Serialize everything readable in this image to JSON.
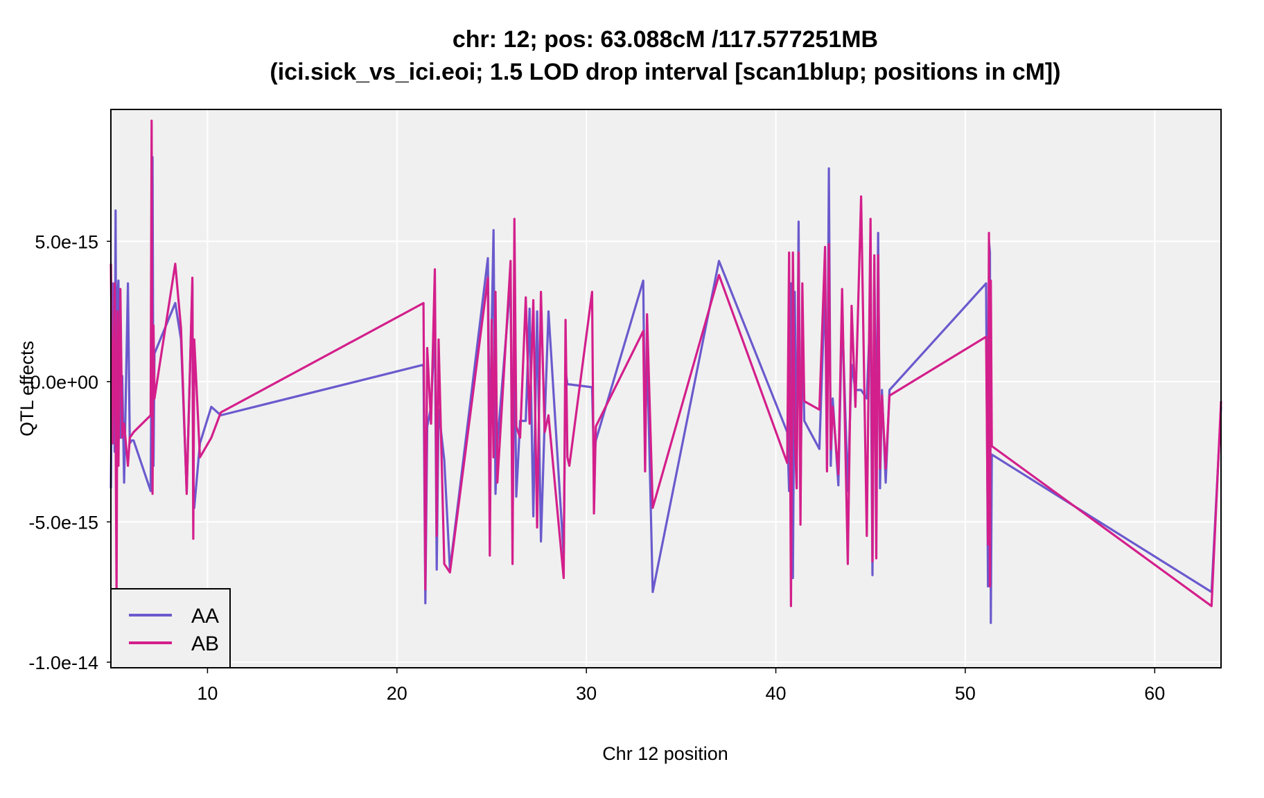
{
  "chart_data": {
    "type": "line",
    "title_line1": "chr: 12; pos: 63.088cM /117.577251MB",
    "title_line2": "(ici.sick_vs_ici.eoi; 1.5 LOD drop interval [scan1blup; positions in cM])",
    "xlabel": "Chr 12 position",
    "ylabel": "QTL effects",
    "xlim": [
      4.9,
      63.5
    ],
    "ylim": [
      -1.02e-14,
      9.7e-15
    ],
    "xticks": [
      10,
      20,
      30,
      40,
      50,
      60
    ],
    "xtick_labels": [
      "10",
      "20",
      "30",
      "40",
      "50",
      "60"
    ],
    "yticks": [
      5e-15,
      0,
      -5e-15,
      -1e-14
    ],
    "ytick_labels": [
      "5.0e-15",
      "0.0e+00",
      "-5.0e-15",
      "-1.0e-14"
    ],
    "grid": true,
    "legend_position": "bottom-left",
    "series": [
      {
        "name": "AA",
        "color": "#6a5acd",
        "x": [
          4.9,
          5.0,
          5.1,
          5.15,
          5.2,
          5.25,
          5.3,
          5.4,
          5.5,
          5.6,
          5.8,
          5.9,
          6.0,
          6.1,
          7.0,
          7.05,
          7.1,
          7.15,
          7.2,
          8.3,
          8.6,
          8.9,
          9.2,
          9.25,
          9.3,
          9.6,
          10.2,
          10.7,
          21.4,
          21.5,
          21.6,
          21.8,
          22.0,
          22.1,
          22.2,
          22.5,
          22.8,
          24.8,
          24.9,
          25.0,
          25.1,
          25.2,
          25.3,
          26.0,
          26.1,
          26.2,
          26.3,
          26.5,
          26.8,
          27.0,
          27.2,
          27.4,
          27.6,
          27.8,
          28.0,
          28.8,
          28.9,
          29.0,
          29.1,
          30.3,
          30.4,
          30.5,
          33.0,
          33.1,
          33.2,
          33.5,
          37.0,
          40.6,
          40.7,
          40.8,
          40.9,
          41.0,
          41.1,
          41.2,
          41.3,
          41.4,
          41.5,
          42.3,
          42.6,
          42.7,
          42.8,
          42.9,
          43.0,
          43.3,
          43.5,
          43.8,
          44.0,
          44.2,
          44.5,
          44.8,
          45.0,
          45.1,
          45.2,
          45.3,
          45.4,
          45.5,
          45.6,
          45.8,
          46.0,
          51.1,
          51.2,
          51.25,
          51.3,
          51.35,
          51.4,
          63.0,
          63.5
        ],
        "y": [
          -3.8e-15,
          3.5e-15,
          -2.5e-15,
          6.1e-15,
          -3.9e-15,
          3e-15,
          3.6e-15,
          -2e-15,
          2e-16,
          -3.6e-15,
          3.5e-15,
          -2.2e-15,
          -2.1e-15,
          -2.1e-15,
          -3.9e-15,
          1.5e-15,
          8e-15,
          -3e-15,
          1e-15,
          2.8e-15,
          1.5e-15,
          -3.9e-15,
          3.5e-15,
          -3.5e-15,
          -4.5e-15,
          -2.2e-15,
          -9e-16,
          -1.2e-15,
          6e-16,
          -7.9e-15,
          -1.6e-15,
          -9e-16,
          2e-15,
          -6.7e-15,
          -1e-15,
          -2.8e-15,
          -6.7e-15,
          4.4e-15,
          -3.1e-15,
          1.9e-15,
          5.4e-15,
          -4e-15,
          -2.2e-15,
          3.6e-15,
          -5.3e-15,
          2.1e-15,
          -4.1e-15,
          -1.4e-15,
          -1.4e-15,
          2.6e-15,
          -4.8e-15,
          2.5e-15,
          -5.7e-15,
          -1.4e-15,
          2.5e-15,
          -6.2e-15,
          4e-16,
          -1e-16,
          -1e-16,
          -2e-16,
          -2.9e-15,
          -2.1e-15,
          3.6e-15,
          -2.2e-15,
          1.2e-15,
          -7.5e-15,
          4.3e-15,
          -1.8e-15,
          -3.9e-15,
          3.5e-15,
          -7e-15,
          3.2e-15,
          -3.8e-15,
          5.7e-15,
          -4.2e-15,
          2e-15,
          -1.4e-15,
          -2.4e-15,
          3.5e-15,
          -3.1e-15,
          7.6e-15,
          -3e-15,
          -6e-16,
          -3.7e-15,
          2.5e-15,
          -3.9e-15,
          6e-16,
          -3e-16,
          -3e-16,
          -6e-16,
          2.7e-15,
          -6.9e-15,
          4.2e-15,
          -3.1e-15,
          5.3e-15,
          -3.8e-15,
          -3e-16,
          -3.6e-15,
          -3e-16,
          3.5e-15,
          -7.3e-15,
          5e-15,
          4.6e-15,
          -8.6e-15,
          -2.6e-15,
          -7.5e-15,
          -9e-16
        ]
      },
      {
        "name": "AB",
        "color": "#d31f8b",
        "x": [
          4.9,
          5.0,
          5.1,
          5.15,
          5.2,
          5.25,
          5.3,
          5.4,
          5.5,
          5.6,
          5.8,
          5.9,
          6.0,
          6.1,
          7.0,
          7.05,
          7.1,
          7.15,
          7.2,
          8.3,
          8.6,
          8.9,
          9.2,
          9.25,
          9.3,
          9.6,
          10.2,
          10.7,
          21.4,
          21.5,
          21.6,
          21.8,
          22.0,
          22.1,
          22.2,
          22.5,
          22.8,
          24.8,
          24.9,
          25.0,
          25.1,
          25.2,
          25.3,
          26.0,
          26.1,
          26.2,
          26.3,
          26.5,
          26.8,
          27.0,
          27.2,
          27.4,
          27.6,
          27.8,
          28.0,
          28.8,
          28.9,
          29.0,
          29.1,
          30.3,
          30.4,
          30.5,
          33.0,
          33.1,
          33.2,
          33.5,
          37.0,
          40.6,
          40.7,
          40.8,
          40.9,
          41.0,
          41.1,
          41.2,
          41.3,
          41.4,
          41.5,
          42.3,
          42.6,
          42.7,
          42.8,
          42.9,
          43.0,
          43.3,
          43.5,
          43.8,
          44.0,
          44.2,
          44.5,
          44.8,
          45.0,
          45.1,
          45.2,
          45.3,
          45.4,
          45.5,
          45.6,
          45.8,
          46.0,
          51.1,
          51.2,
          51.25,
          51.3,
          51.35,
          51.4,
          63.0,
          63.5
        ],
        "y": [
          4.2e-15,
          -2.2e-15,
          3.5e-15,
          -1.5e-15,
          -7.5e-15,
          2.5e-15,
          -3e-15,
          3.3e-15,
          -2e-15,
          -1.5e-15,
          -3e-15,
          -2e-15,
          -1.9e-15,
          -1.8e-15,
          -1.2e-15,
          9.3e-15,
          -4e-15,
          2e-15,
          -6e-16,
          4.2e-15,
          1.9e-15,
          -4e-15,
          3.7e-15,
          -5.6e-15,
          1.5e-15,
          -2.7e-15,
          -2e-15,
          -1.1e-15,
          2.8e-15,
          -7.4e-15,
          1.2e-15,
          -1.5e-15,
          4e-15,
          -5.5e-15,
          1.5e-15,
          -6.5e-15,
          -6.8e-15,
          3.7e-15,
          -6.2e-15,
          2.2e-15,
          -2.7e-15,
          3.2e-15,
          -3.6e-15,
          4.3e-15,
          -6.5e-15,
          5.8e-15,
          -1.6e-15,
          -2e-15,
          3e-15,
          -1.5e-15,
          2.9e-15,
          -5.2e-15,
          3.2e-15,
          -1.8e-15,
          -1.2e-15,
          -7e-15,
          2.2e-15,
          -2.7e-15,
          -3e-15,
          3.2e-15,
          -4.7e-15,
          -1.6e-15,
          1.8e-15,
          -3.2e-15,
          2.4e-15,
          -4.5e-15,
          3.8e-15,
          -2.9e-15,
          4.6e-15,
          -8e-15,
          4.6e-15,
          -1.9e-15,
          -3.8e-15,
          4.6e-15,
          -5.1e-15,
          3.5e-15,
          -7e-16,
          -1e-15,
          4.8e-15,
          -3.2e-15,
          4.9e-15,
          -2.4e-15,
          -9e-16,
          -3.3e-15,
          3.3e-15,
          -6.5e-15,
          2.7e-15,
          -9e-16,
          6.6e-15,
          -5.5e-15,
          5.8e-15,
          -6.4e-15,
          4.5e-15,
          -6.3e-15,
          4.5e-15,
          -3.1e-15,
          -5e-16,
          -3.1e-15,
          -5e-16,
          1.6e-15,
          -5.8e-15,
          5.3e-15,
          -7.3e-15,
          3.6e-15,
          -2.3e-15,
          -8e-15,
          -7e-16
        ]
      }
    ]
  }
}
